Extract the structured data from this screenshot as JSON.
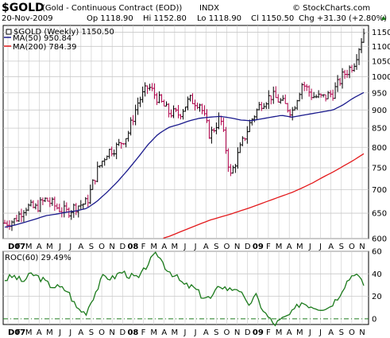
{
  "header": {
    "symbol": "$GOLD",
    "description": "(Gold - Continuous Contract (EOD))",
    "exchange": "INDX",
    "copyright": "© StockCharts.com",
    "date": "20-Nov-2009",
    "op": "Op 1118.90",
    "hi": "Hi 1152.80",
    "lo": "Lo 1118.90",
    "cl": "Cl 1150.50",
    "chg": "Chg +31.30 (+2.80%)",
    "chg_arrow": "up-triangle-icon"
  },
  "legend_price": [
    {
      "label": "$GOLD (Weekly) 1150.50",
      "color": "#000000",
      "swatch": "checkbox"
    },
    {
      "label": "MA(50) 950.84",
      "color": "#1a1a8c",
      "swatch": "line"
    },
    {
      "label": "MA(200) 784.39",
      "color": "#e31a1c",
      "swatch": "line"
    }
  ],
  "legend_roc": {
    "label": "ROC(60) 29.49%",
    "color": "#1b7a1b"
  },
  "colors": {
    "up_bar": "#000000",
    "down_bar": "#b0004a",
    "ma50": "#1a1a8c",
    "ma200": "#e31a1c",
    "roc": "#1b7a1b",
    "grid": "#c8c8c8",
    "zero_line": "#1b7a1b"
  },
  "x_axis": {
    "labels": [
      "D07",
      "F",
      "M",
      "A",
      "M",
      "J",
      "J",
      "A",
      "S",
      "O",
      "N",
      "D",
      "08",
      "F",
      "M",
      "A",
      "M",
      "J",
      "J",
      "A",
      "S",
      "O",
      "N",
      "D",
      "09",
      "F",
      "M",
      "A",
      "M",
      "J",
      "J",
      "A",
      "S",
      "O",
      "N"
    ],
    "year_labels": [
      "D07",
      "08",
      "09"
    ]
  },
  "chart_data": [
    {
      "type": "line",
      "title": "$GOLD (Weekly)",
      "scale": "log",
      "ylim": [
        600,
        1175
      ],
      "y_ticks": [
        600,
        650,
        700,
        750,
        800,
        850,
        900,
        950,
        1000,
        1050,
        1100,
        1150
      ],
      "x": [
        "2006-12",
        "2007-01",
        "2007-02",
        "2007-03",
        "2007-04",
        "2007-05",
        "2007-06",
        "2007-07",
        "2007-08",
        "2007-09",
        "2007-10",
        "2007-11",
        "2007-12",
        "2008-01",
        "2008-02",
        "2008-03",
        "2008-04",
        "2008-05",
        "2008-06",
        "2008-07",
        "2008-08",
        "2008-09",
        "2008-10",
        "2008-11",
        "2008-12",
        "2009-01",
        "2009-02",
        "2009-03",
        "2009-04",
        "2009-05",
        "2009-06",
        "2009-07",
        "2009-08",
        "2009-09",
        "2009-10",
        "2009-11"
      ],
      "series": [
        {
          "name": "$GOLD (Weekly) 1150.50",
          "values": [
            630,
            636,
            664,
            660,
            679,
            663,
            652,
            665,
            672,
            743,
            789,
            802,
            834,
            923,
            970,
            930,
            893,
            888,
            930,
            920,
            830,
            880,
            730,
            800,
            870,
            920,
            942,
            922,
            895,
            980,
            940,
            935,
            950,
            1005,
            1040,
            1150
          ]
        },
        {
          "name": "MA(50) 950.84",
          "values": [
            622,
            626,
            632,
            638,
            645,
            648,
            652,
            655,
            660,
            675,
            695,
            718,
            745,
            775,
            808,
            835,
            852,
            860,
            870,
            877,
            880,
            882,
            878,
            872,
            870,
            875,
            880,
            885,
            880,
            885,
            890,
            895,
            900,
            915,
            935,
            951
          ]
        },
        {
          "name": "MA(200) 784.39",
          "values": [
            null,
            null,
            null,
            null,
            null,
            null,
            null,
            null,
            null,
            null,
            null,
            null,
            null,
            null,
            592,
            598,
            604,
            612,
            620,
            628,
            636,
            642,
            648,
            655,
            662,
            670,
            678,
            686,
            694,
            704,
            715,
            728,
            740,
            754,
            768,
            784
          ]
        }
      ]
    },
    {
      "type": "line",
      "title": "ROC(60)",
      "ylim": [
        -5,
        60
      ],
      "y_ticks": [
        0,
        20,
        40,
        60
      ],
      "series": [
        {
          "name": "ROC(60) 29.49%",
          "values": [
            35,
            38,
            33,
            40,
            36,
            30,
            28,
            25,
            10,
            5,
            22,
            38,
            36,
            42,
            38,
            36,
            50,
            58,
            45,
            38,
            30,
            28,
            20,
            18,
            30,
            26,
            28,
            12,
            20,
            5,
            -5,
            0,
            5,
            15,
            12,
            10,
            10,
            18,
            32,
            42,
            29.49
          ]
        }
      ]
    }
  ]
}
